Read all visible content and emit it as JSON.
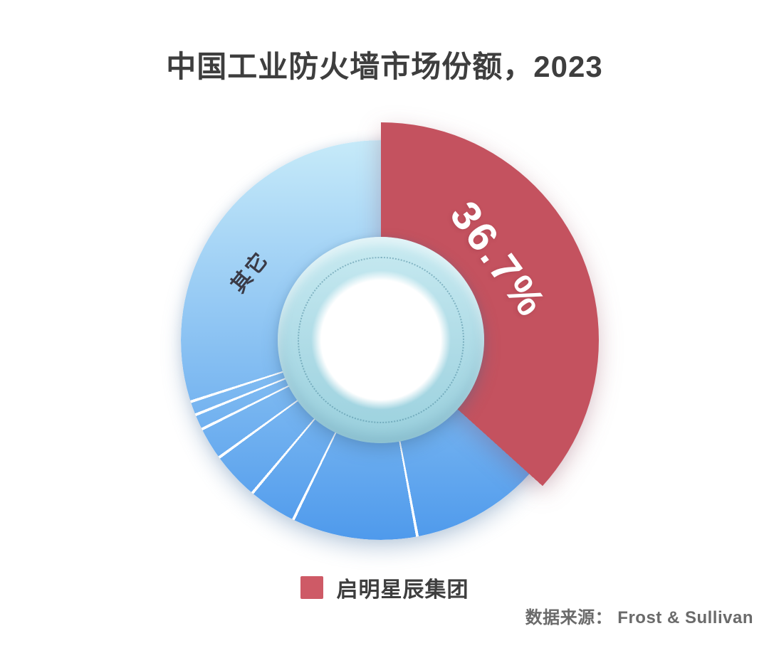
{
  "chart_data": {
    "type": "pie",
    "donut": true,
    "title": "中国工业防火墙市场份额，2023",
    "start_angle_deg": 0,
    "clockwise": true,
    "series": [
      {
        "name": "启明星辰集团",
        "value_pct": 36.7,
        "label": "36.7%",
        "color": "#c4525f",
        "outer_radius_px": 306
      },
      {
        "name": "其它",
        "value_pct": 63.3,
        "label": "其它",
        "color_top": "#c6eaf9",
        "color_bottom": "#4f9aec",
        "outer_radius_px": 281,
        "divider_angles_deg": [
          169.5,
          206,
          220,
          234,
          243.5,
          248,
          252
        ]
      }
    ],
    "legend": {
      "position": "bottom",
      "items": [
        {
          "label": "启明星辰集团",
          "color": "#ce5a66"
        }
      ]
    },
    "source": "数据来源： Frost & Sullivan"
  }
}
